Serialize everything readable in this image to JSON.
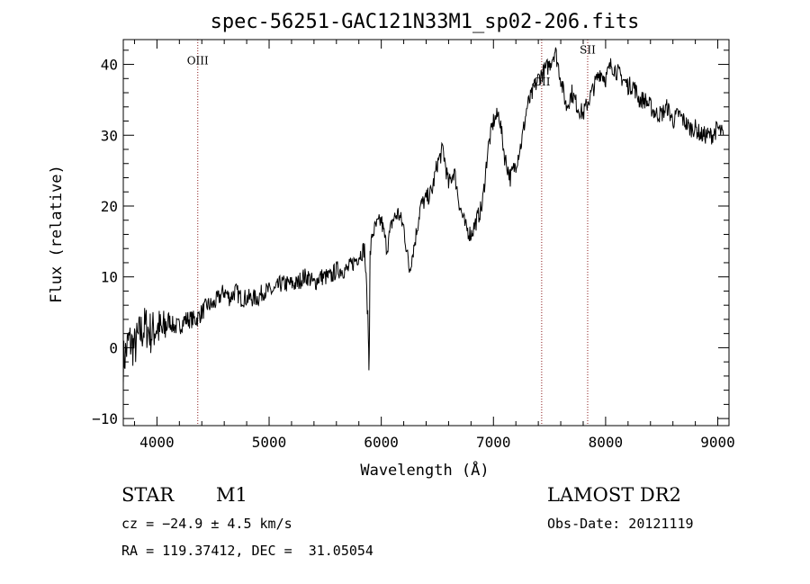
{
  "chart_data": {
    "type": "line",
    "title": "spec-56251-GAC121N33M1_sp02-206.fits",
    "xlabel": "Wavelength (Å)",
    "ylabel": "Flux (relative)",
    "xlim": [
      3700,
      9100
    ],
    "ylim": [
      -11,
      43.5
    ],
    "xticks": [
      4000,
      5000,
      6000,
      7000,
      8000,
      9000
    ],
    "yticks": [
      -10,
      0,
      10,
      20,
      30,
      40
    ],
    "grid": false,
    "line_color": "#000000",
    "marker_color": "#8b1a1a",
    "series": [
      {
        "x": [
          3700,
          3750,
          3800,
          3850,
          3900,
          3950,
          4000,
          4050,
          4100,
          4150,
          4200,
          4250,
          4300,
          4350,
          4400,
          4450,
          4500,
          4550,
          4600,
          4650,
          4700,
          4750,
          4800,
          4850,
          4900,
          4950,
          5000,
          5050,
          5100,
          5150,
          5200,
          5250,
          5300,
          5350,
          5400,
          5450,
          5500,
          5550,
          5600,
          5650,
          5700,
          5750,
          5800,
          5850,
          5870,
          5885,
          5890,
          5895,
          5900,
          5920,
          5950,
          6000,
          6050,
          6100,
          6150,
          6200,
          6250,
          6300,
          6350,
          6400,
          6450,
          6500,
          6550,
          6600,
          6650,
          6700,
          6750,
          6800,
          6850,
          6900,
          6950,
          7000,
          7050,
          7100,
          7150,
          7200,
          7250,
          7300,
          7350,
          7400,
          7450,
          7500,
          7550,
          7600,
          7650,
          7700,
          7750,
          7800,
          7850,
          7900,
          7950,
          8000,
          8050,
          8100,
          8150,
          8200,
          8250,
          8300,
          8350,
          8400,
          8450,
          8500,
          8550,
          8600,
          8650,
          8700,
          8750,
          8800,
          8850,
          8900,
          8950,
          9000,
          9050
        ],
        "y": [
          -2,
          1,
          0,
          2,
          3,
          2,
          3,
          2,
          4,
          3,
          3,
          4,
          4,
          4,
          5,
          6,
          6,
          7,
          8,
          7,
          8,
          7,
          7,
          7,
          7,
          8,
          8,
          8,
          9,
          9,
          9,
          9,
          10,
          10,
          9,
          10,
          10,
          10,
          11,
          11,
          11,
          12,
          13,
          14,
          8,
          2,
          -3,
          4,
          13,
          16,
          17,
          18,
          14,
          18,
          19,
          17,
          11,
          15,
          20,
          21,
          22,
          26,
          28,
          23,
          25,
          20,
          17,
          16,
          18,
          20,
          28,
          32,
          33,
          27,
          24,
          26,
          29,
          34,
          36,
          38,
          39,
          40,
          42,
          38,
          34,
          36,
          34,
          33,
          35,
          37,
          39,
          38,
          40,
          39,
          38,
          37,
          37,
          35,
          35,
          34,
          33,
          33,
          34,
          32,
          33,
          32,
          31,
          31,
          30,
          30,
          30,
          31,
          30
        ]
      }
    ],
    "annotations": [
      {
        "label": "OIII",
        "x": 4364,
        "y_label": 40
      },
      {
        "label": "OII",
        "x": 7430,
        "y_label": 37
      },
      {
        "label": "SII",
        "x": 7840,
        "y_label": 41.5
      }
    ]
  },
  "info": {
    "object_class": "STAR",
    "subclass": "M1",
    "survey": "LAMOST DR2",
    "velocity": "cz = −24.9 ± 4.5 km/s",
    "obs_date": "Obs-Date: 20121119",
    "coordinates": "RA = 119.37412, DEC =  31.05054"
  }
}
